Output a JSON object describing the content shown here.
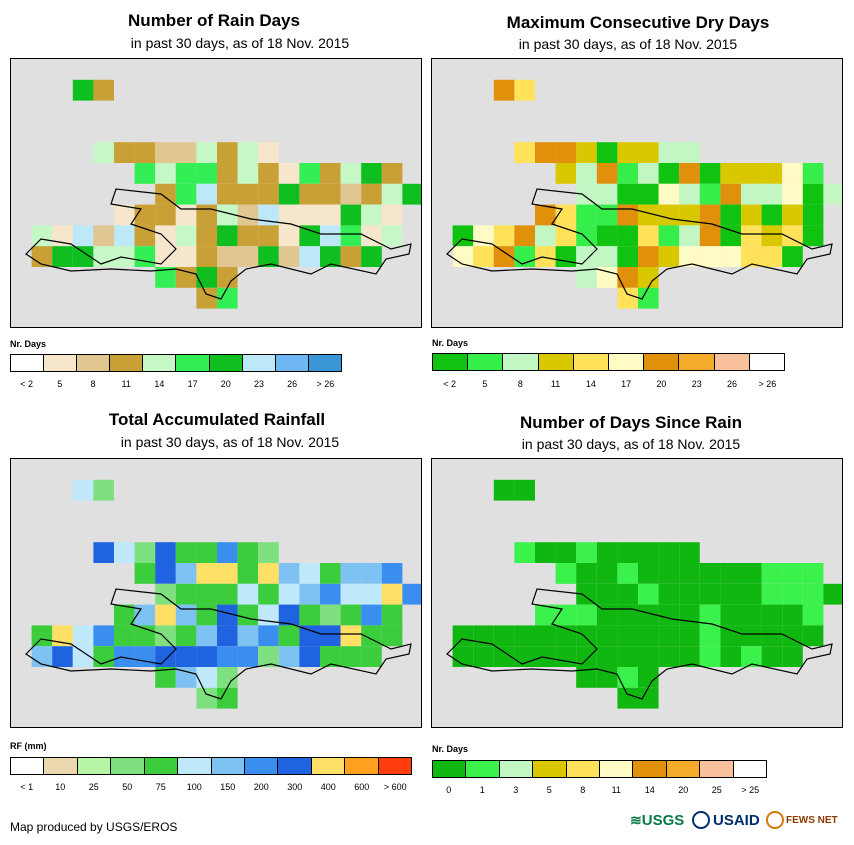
{
  "panels": [
    {
      "title": "Number of Rain Days",
      "subtitle": "in past 30 days, as of 18 Nov. 2015",
      "legend_title": "Nr. Days",
      "legend_colors": [
        "#ffffff",
        "#f5e6cc",
        "#e0c690",
        "#c9a035",
        "#c6f7c6",
        "#33ee55",
        "#0fbe1f",
        "#bde8f7",
        "#6fb7f3",
        "#3a96d6"
      ],
      "legend_labels": [
        "< 2",
        "5",
        "8",
        "11",
        "14",
        "17",
        "20",
        "23",
        "26",
        "> 26"
      ]
    },
    {
      "title": "Maximum Consecutive Dry Days",
      "subtitle": "in past 30 days, as of 18 Nov. 2015",
      "legend_title": "Nr. Days",
      "legend_colors": [
        "#11c311",
        "#35ee4a",
        "#c2f7c4",
        "#d9c800",
        "#ffe15a",
        "#fffbc4",
        "#e0900a",
        "#f5ab2a",
        "#f8c19b",
        "#ffffff"
      ],
      "legend_labels": [
        "< 2",
        "5",
        "8",
        "11",
        "14",
        "17",
        "20",
        "23",
        "26",
        "> 26"
      ]
    },
    {
      "title": "Total Accumulated Rainfall",
      "subtitle": "in past 30 days, as of 18 Nov. 2015",
      "legend_title": "RF (mm)",
      "legend_colors": [
        "#ffffff",
        "#ecd8ae",
        "#b8f4a6",
        "#7fe07f",
        "#3ccd3c",
        "#bfe9fa",
        "#7dc2f3",
        "#3a8ef0",
        "#1f63e0",
        "#ffe066",
        "#ffa01e",
        "#ff3d0d"
      ],
      "legend_labels": [
        "< 1",
        "10",
        "25",
        "50",
        "75",
        "100",
        "150",
        "200",
        "300",
        "400",
        "600",
        "> 600"
      ]
    },
    {
      "title": "Number of Days Since Rain",
      "subtitle": "in past 30 days, as of 18 Nov. 2015",
      "legend_title": "Nr. Days",
      "legend_colors": [
        "#11b711",
        "#3bf14b",
        "#c2f7c4",
        "#d9c800",
        "#ffe15a",
        "#fffbc4",
        "#e0900a",
        "#f5ab2a",
        "#f8c19b",
        "#ffffff"
      ],
      "legend_labels": [
        "0",
        "1",
        "3",
        "5",
        "8",
        "11",
        "14",
        "20",
        "25",
        "> 25"
      ]
    }
  ],
  "credit": "Map produced by USGS/EROS",
  "logos": [
    {
      "text": "USGS",
      "color": "#0a7a45"
    },
    {
      "text": "USAID",
      "color": "#002f6c"
    },
    {
      "text": "FEWS NET",
      "color": "#8b3a00"
    }
  ]
}
